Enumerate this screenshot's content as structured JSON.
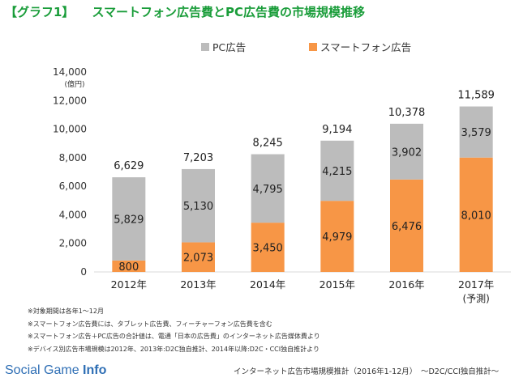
{
  "title": {
    "label": "【グラフ1】",
    "text": "スマートフォン広告費とPC広告費の市場規模推移"
  },
  "colors": {
    "pc": "#bcbcbc",
    "smartphone": "#f79646",
    "title": "#1a9d3a",
    "axis": "#d9d9d9",
    "brand": "#2f6fb5"
  },
  "chart_data": {
    "type": "bar",
    "stacked": true,
    "unit": "(億円)",
    "categories": [
      "2012年",
      "2013年",
      "2014年",
      "2015年",
      "2016年",
      "2017年"
    ],
    "category_sublabels": [
      "",
      "",
      "",
      "",
      "",
      "(予測)"
    ],
    "series": [
      {
        "name": "スマートフォン広告",
        "values": [
          800,
          2073,
          3450,
          4979,
          6476,
          8010
        ]
      },
      {
        "name": "PC広告",
        "values": [
          5829,
          5130,
          4795,
          4215,
          3902,
          3579
        ]
      }
    ],
    "value_labels": {
      "スマートフォン広告": [
        "800",
        "2,073",
        "3,450",
        "4,979",
        "6,476",
        "8,010"
      ],
      "PC広告": [
        "5,829",
        "5,130",
        "4,795",
        "4,215",
        "3,902",
        "3,579"
      ]
    },
    "totals": [
      6629,
      7203,
      8245,
      9194,
      10378,
      11589
    ],
    "total_labels": [
      "6,629",
      "7,203",
      "8,245",
      "9,194",
      "10,378",
      "11,589"
    ],
    "ylim": [
      0,
      14000
    ],
    "yticks": [
      0,
      2000,
      4000,
      6000,
      8000,
      10000,
      12000,
      14000
    ],
    "ytick_labels": [
      "0",
      "2,000",
      "4,000",
      "6,000",
      "8,000",
      "10,000",
      "12,000",
      "14,000"
    ],
    "legend": {
      "placement": "top",
      "order": [
        "PC広告",
        "スマートフォン広告"
      ]
    },
    "grid": false
  },
  "notes": [
    "※対象期間は各年1～12月",
    "※スマートフォン広告費には、タブレット広告費、フィーチャーフォン広告費を含む",
    "※スマートフォン広告＋PC広告の合計値は、電通「日本の広告費」のインターネット広告媒体費より",
    "※デバイス別広告市場規模は2012年、2013年:D2C独自推計、2014年以降:D2C・CCI独自推計より"
  ],
  "footer": {
    "brand_light": "Social Game ",
    "brand_bold": "Info",
    "source": "インターネット広告市場規模推計（2016年1-12月）　～D2C/CCI独自推計～"
  }
}
